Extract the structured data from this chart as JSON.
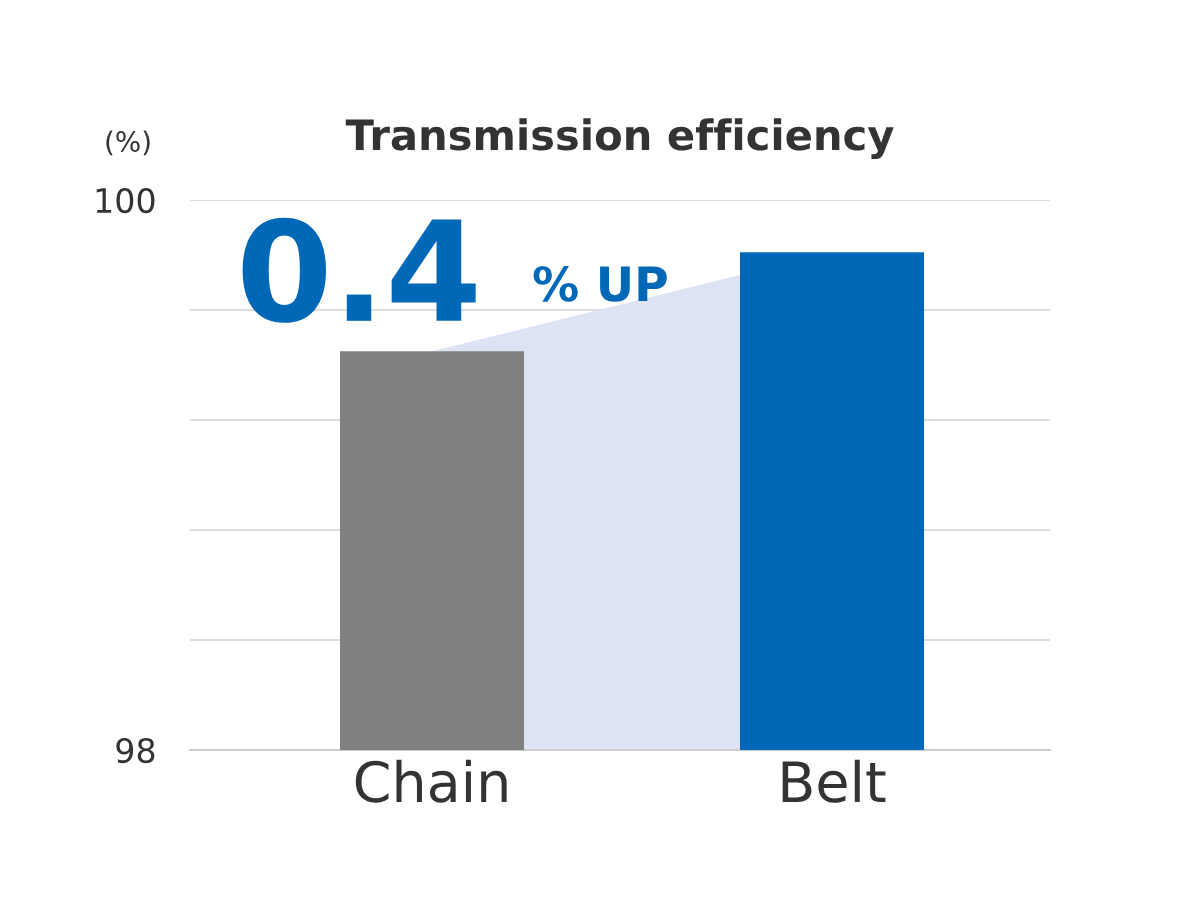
{
  "chart_data": {
    "type": "bar",
    "title": "Transmission efficiency",
    "ylabel": "(%)",
    "categories": [
      "Chain",
      "Belt"
    ],
    "series": [
      {
        "colors": [
          "#808080",
          "#0068b7"
        ],
        "values": [
          99.45,
          99.81
        ]
      },
      {
        "type": "area",
        "color": "#dde3f3",
        "values": [
          99.45,
          99.81
        ]
      }
    ],
    "ylim": [
      98,
      100
    ],
    "yticks": [
      98,
      {
        "value": 98.4,
        "label": null
      },
      {
        "value": 98.8,
        "label": null
      },
      {
        "value": 99.2,
        "label": null
      },
      {
        "value": 99.6,
        "label": null
      },
      100
    ],
    "grid": "y",
    "annotations": [
      "0.4",
      "% UP"
    ]
  }
}
